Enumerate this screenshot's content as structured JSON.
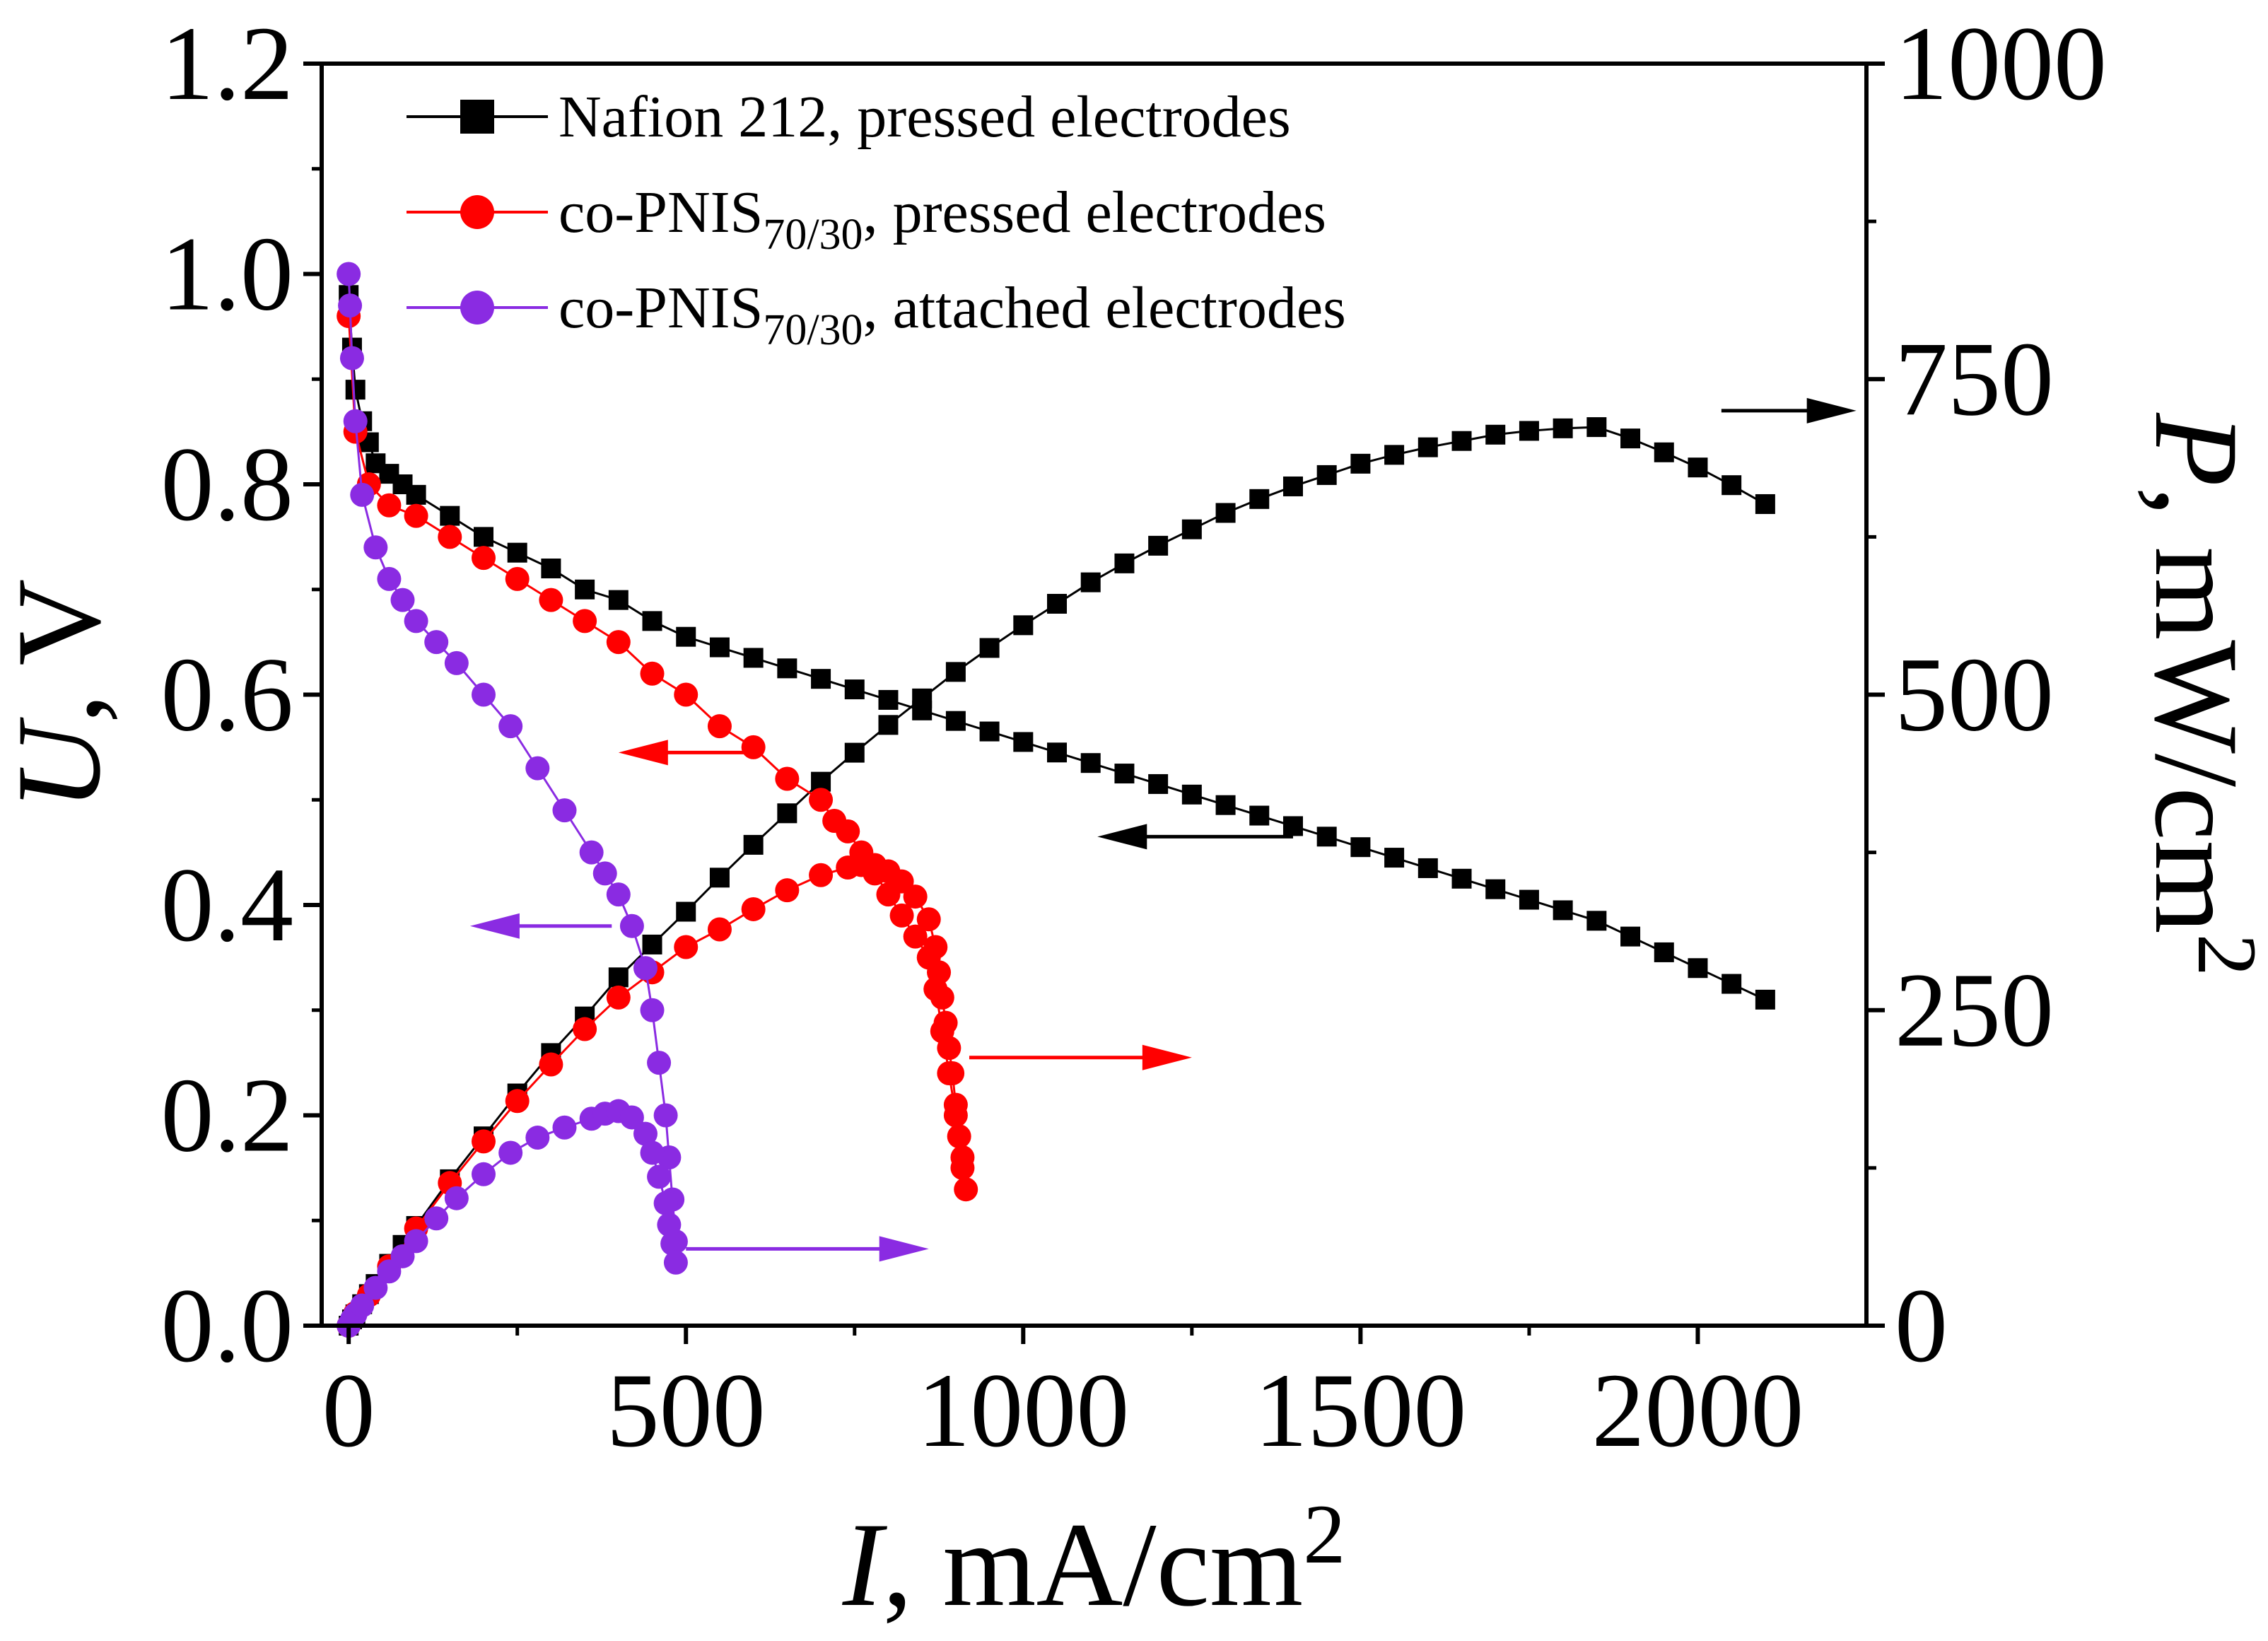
{
  "chart_data": {
    "type": "line",
    "xlabel": {
      "var": "I",
      "rest": ", mA/cm",
      "sup": "2"
    },
    "ylabel_left": {
      "var": "U",
      "rest": ", V"
    },
    "ylabel_right": {
      "var": "P",
      "rest": ", mW/cm",
      "sup": "2"
    },
    "xlim": [
      -40,
      2250
    ],
    "ylim_left": [
      0,
      1.2
    ],
    "ylim_right": [
      0,
      1000
    ],
    "xticks": [
      "0",
      "500",
      "1000",
      "1500",
      "2000"
    ],
    "xtick_values": [
      0,
      500,
      1000,
      1500,
      2000
    ],
    "yticks_left": [
      "0.0",
      "0.2",
      "0.4",
      "0.6",
      "0.8",
      "1.0",
      "1.2"
    ],
    "ytick_values_left": [
      0,
      0.2,
      0.4,
      0.6,
      0.8,
      1.0,
      1.2
    ],
    "yticks_right": [
      "0",
      "250",
      "500",
      "750",
      "1000"
    ],
    "ytick_values_right": [
      0,
      250,
      500,
      750,
      1000
    ],
    "grid": false,
    "legend_position": "top-left",
    "series": [
      {
        "name": "Nafion 212, pressed electrodes",
        "legend_main": "Nafion 212, pressed electrodes",
        "legend_sub": "",
        "legend_tail": "",
        "color": "#000000",
        "marker": "square",
        "polarization": {
          "x": [
            0,
            5,
            10,
            20,
            30,
            40,
            60,
            80,
            100,
            150,
            200,
            250,
            300,
            350,
            400,
            450,
            500,
            550,
            600,
            650,
            700,
            750,
            800,
            850,
            900,
            950,
            1000,
            1050,
            1100,
            1150,
            1200,
            1250,
            1300,
            1350,
            1400,
            1450,
            1500,
            1550,
            1600,
            1650,
            1700,
            1750,
            1800,
            1850,
            1900,
            1950,
            2000,
            2050,
            2100
          ],
          "y": [
            0.98,
            0.93,
            0.89,
            0.86,
            0.84,
            0.82,
            0.81,
            0.8,
            0.79,
            0.77,
            0.75,
            0.735,
            0.72,
            0.7,
            0.69,
            0.67,
            0.655,
            0.645,
            0.635,
            0.625,
            0.615,
            0.605,
            0.595,
            0.585,
            0.575,
            0.565,
            0.555,
            0.545,
            0.535,
            0.525,
            0.515,
            0.505,
            0.495,
            0.485,
            0.475,
            0.465,
            0.455,
            0.445,
            0.435,
            0.425,
            0.415,
            0.405,
            0.395,
            0.385,
            0.37,
            0.355,
            0.34,
            0.325,
            0.31
          ]
        },
        "power": {
          "x": [
            0,
            5,
            10,
            20,
            30,
            40,
            60,
            80,
            100,
            150,
            200,
            250,
            300,
            350,
            400,
            450,
            500,
            550,
            600,
            650,
            700,
            750,
            800,
            850,
            900,
            950,
            1000,
            1050,
            1100,
            1150,
            1200,
            1250,
            1300,
            1350,
            1400,
            1450,
            1500,
            1550,
            1600,
            1650,
            1700,
            1750,
            1800,
            1850,
            1900,
            1950,
            2000,
            2050,
            2100
          ],
          "y": [
            0,
            5,
            9,
            17,
            25,
            33,
            49,
            64,
            79,
            116,
            150,
            184,
            216,
            245,
            276,
            302,
            328,
            355,
            381,
            406,
            431,
            454,
            476,
            497,
            518,
            537,
            555,
            572,
            589,
            604,
            618,
            631,
            644,
            655,
            665,
            674,
            683,
            690,
            696,
            701,
            706,
            709,
            711,
            712,
            703,
            692,
            680,
            666,
            651
          ]
        }
      },
      {
        "name": "co-PNIS70/30, pressed electrodes",
        "legend_main": "co-PNIS",
        "legend_sub": "70/30",
        "legend_tail": ", pressed electrodes",
        "color": "#ff0000",
        "marker": "circle",
        "polarization": {
          "x": [
            0,
            10,
            30,
            60,
            100,
            150,
            200,
            250,
            300,
            350,
            400,
            450,
            500,
            550,
            600,
            650,
            700,
            720,
            740,
            760,
            780,
            800,
            820,
            840,
            860,
            870,
            880,
            890,
            900,
            910
          ],
          "y": [
            0.96,
            0.85,
            0.8,
            0.78,
            0.77,
            0.75,
            0.73,
            0.71,
            0.69,
            0.67,
            0.65,
            0.62,
            0.6,
            0.57,
            0.55,
            0.52,
            0.5,
            0.48,
            0.47,
            0.45,
            0.43,
            0.41,
            0.39,
            0.37,
            0.35,
            0.32,
            0.28,
            0.24,
            0.2,
            0.16
          ]
        },
        "power": {
          "x": [
            0,
            10,
            30,
            60,
            100,
            150,
            200,
            250,
            300,
            350,
            400,
            450,
            500,
            550,
            600,
            650,
            700,
            740,
            760,
            780,
            800,
            820,
            840,
            860,
            870,
            875,
            880,
            885,
            890,
            895,
            900,
            905,
            910,
            915
          ],
          "y": [
            0,
            10,
            24,
            47,
            77,
            113,
            146,
            178,
            207,
            235,
            260,
            280,
            300,
            314,
            330,
            345,
            357,
            363,
            365,
            365,
            360,
            352,
            340,
            322,
            300,
            280,
            260,
            240,
            220,
            200,
            175,
            150,
            125,
            108
          ]
        }
      },
      {
        "name": "co-PNIS70/30, attached electrodes",
        "legend_main": "co-PNIS",
        "legend_sub": "70/30",
        "legend_tail": ", attached electrodes",
        "color": "#8a2be2",
        "marker": "circle",
        "polarization": {
          "x": [
            0,
            2,
            5,
            10,
            20,
            40,
            60,
            80,
            100,
            130,
            160,
            200,
            240,
            280,
            320,
            360,
            380,
            400,
            420,
            440,
            450,
            460,
            470,
            475,
            480,
            485
          ],
          "y": [
            1.0,
            0.97,
            0.92,
            0.86,
            0.79,
            0.74,
            0.71,
            0.69,
            0.67,
            0.65,
            0.63,
            0.6,
            0.57,
            0.53,
            0.49,
            0.45,
            0.43,
            0.41,
            0.38,
            0.34,
            0.3,
            0.25,
            0.2,
            0.16,
            0.12,
            0.08
          ]
        },
        "power": {
          "x": [
            0,
            5,
            10,
            20,
            40,
            60,
            80,
            100,
            130,
            160,
            200,
            240,
            280,
            320,
            360,
            380,
            400,
            420,
            440,
            450,
            460,
            470,
            475,
            480,
            485
          ],
          "y": [
            0,
            5,
            9,
            16,
            30,
            43,
            55,
            67,
            85,
            101,
            120,
            137,
            149,
            157,
            164,
            168,
            170,
            165,
            152,
            137,
            118,
            97,
            80,
            65,
            50
          ]
        }
      }
    ],
    "annotations": [
      {
        "color": "#000000",
        "direction": "right",
        "x0": 2035,
        "x1": 2235,
        "axis": "left",
        "y": 0.87
      },
      {
        "color": "#000000",
        "direction": "left",
        "x0": 1400,
        "x1": 1110,
        "axis": "left",
        "y": 0.465
      },
      {
        "color": "#ff0000",
        "direction": "left",
        "x0": 610,
        "x1": 400,
        "axis": "left",
        "y": 0.545
      },
      {
        "color": "#ff0000",
        "direction": "right",
        "x0": 920,
        "x1": 1250,
        "axis": "left",
        "y": 0.255
      },
      {
        "color": "#8a2be2",
        "direction": "left",
        "x0": 390,
        "x1": 180,
        "axis": "left",
        "y": 0.38
      },
      {
        "color": "#8a2be2",
        "direction": "right",
        "x0": 500,
        "x1": 860,
        "axis": "left",
        "y": 0.073
      }
    ]
  }
}
